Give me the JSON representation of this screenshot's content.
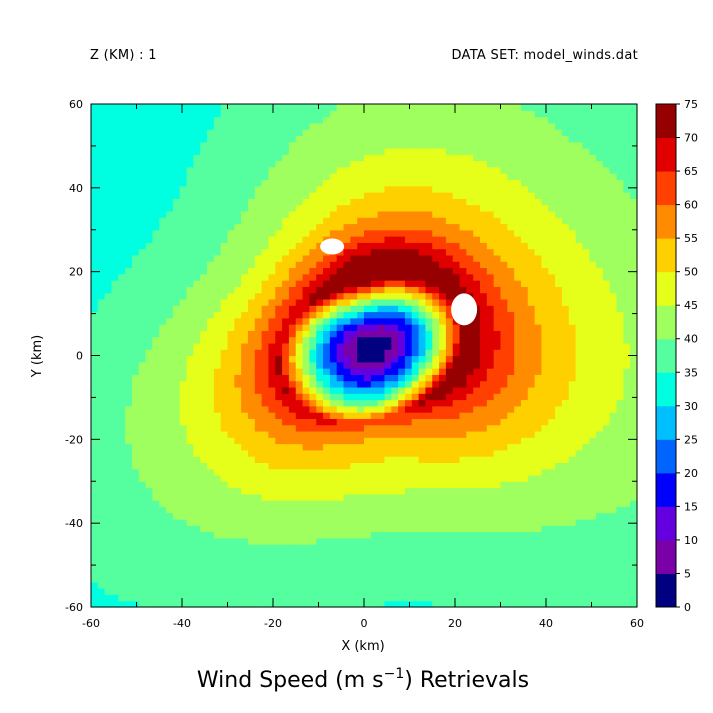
{
  "header": {
    "left": "Z (KM) : 1",
    "right": "DATA SET: model_winds.dat"
  },
  "chart_data": {
    "type": "heatmap",
    "title_prefix": "Wind Speed (m s",
    "title_sup": "−1",
    "title_suffix": ") Retrievals",
    "xlabel": "X (km)",
    "ylabel": "Y (km)",
    "xlim": [
      -60,
      60
    ],
    "ylim": [
      -60,
      60
    ],
    "xticks": [
      -60,
      -40,
      -20,
      0,
      20,
      40,
      60
    ],
    "yticks": [
      -60,
      -40,
      -20,
      0,
      20,
      40,
      60
    ],
    "colorbar": {
      "levels": [
        0,
        5,
        10,
        15,
        20,
        25,
        30,
        35,
        40,
        45,
        50,
        55,
        60,
        65,
        70,
        75
      ],
      "colors": [
        "#000080",
        "#7a00a8",
        "#6400e0",
        "#0000ff",
        "#0064ff",
        "#00bfff",
        "#00ffe0",
        "#55ff9f",
        "#9fff5f",
        "#e6ff1a",
        "#ffd000",
        "#ff8c00",
        "#ff4000",
        "#e00000",
        "#960000"
      ]
    },
    "center_minimum": {
      "x": 2,
      "y": 2,
      "value": 0
    },
    "eyewall_maxima": [
      {
        "x": -7,
        "y": 26,
        "value": 77
      },
      {
        "x": 22,
        "y": 11,
        "value": 77
      }
    ],
    "missing_data_color": "#ffffff"
  }
}
